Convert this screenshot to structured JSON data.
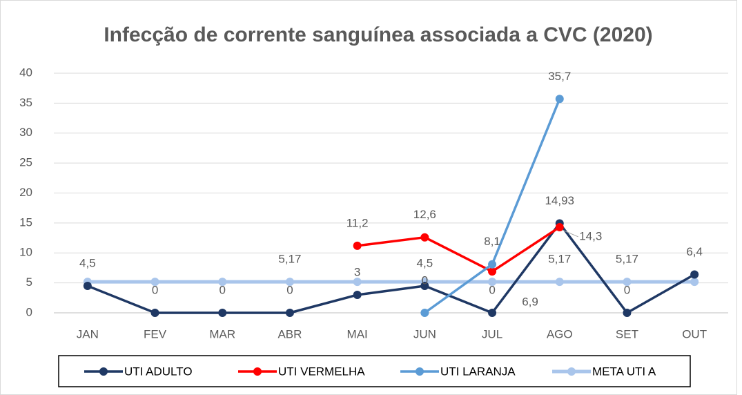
{
  "chart_data": {
    "type": "line",
    "title": "Infecção de corrente sanguínea associada a CVC (2020)",
    "categories": [
      "JAN",
      "FEV",
      "MAR",
      "ABR",
      "MAI",
      "JUN",
      "JUL",
      "AGO",
      "SET",
      "OUT"
    ],
    "ylim": [
      0,
      40
    ],
    "yticks": [
      0,
      5,
      10,
      15,
      20,
      25,
      30,
      35,
      40
    ],
    "grid": true,
    "legend": "bottom",
    "series": [
      {
        "name": "UTI ADULTO",
        "color": "#1f3864",
        "values": [
          4.5,
          0,
          0,
          0,
          3,
          4.5,
          0,
          14.93,
          0,
          6.4
        ],
        "value_labels": [
          "4,5",
          "0",
          "0",
          "0",
          "3",
          "4,5",
          "0",
          "14,93",
          "0",
          "6,4"
        ]
      },
      {
        "name": "UTI VERMELHA",
        "color": "#ff0000",
        "values": [
          null,
          null,
          null,
          null,
          11.2,
          12.6,
          6.9,
          14.3,
          null,
          null
        ],
        "value_labels": [
          null,
          null,
          null,
          null,
          "11,2",
          "12,6",
          "6,9",
          "14,3",
          null,
          null
        ]
      },
      {
        "name": "UTI LARANJA",
        "color": "#5b9bd5",
        "values": [
          null,
          null,
          null,
          null,
          null,
          0,
          8.1,
          35.7,
          null,
          null
        ],
        "value_labels": [
          null,
          null,
          null,
          null,
          null,
          "0",
          "8,1",
          "35,7",
          null,
          null
        ]
      },
      {
        "name": "META UTI A",
        "color": "#a9c5eb",
        "values": [
          5.17,
          5.17,
          5.17,
          5.17,
          5.17,
          5.17,
          5.17,
          5.17,
          5.17,
          5.17
        ],
        "value_labels": [
          null,
          null,
          null,
          "5,17",
          null,
          null,
          null,
          "5,17",
          "5,17",
          null
        ]
      }
    ]
  }
}
